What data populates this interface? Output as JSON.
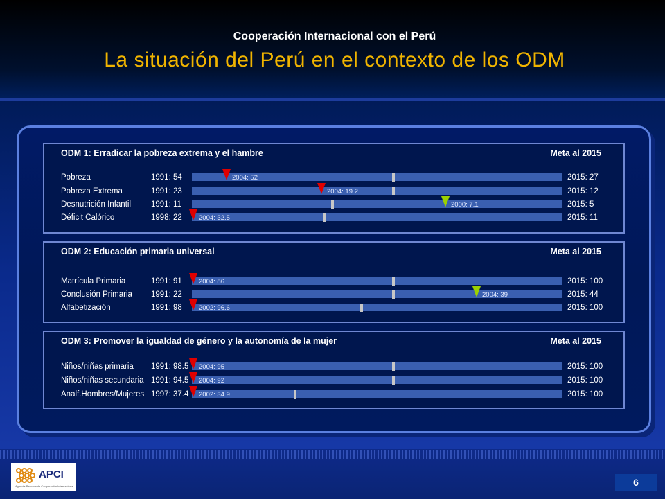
{
  "header": {
    "subtitle": "Cooperación Internacional con el Perú",
    "title": "La situación del Perú en el contexto de los ODM"
  },
  "sections": [
    {
      "title": "ODM 1: Erradicar la pobreza extrema y el hambre",
      "meta": "Meta al 2015",
      "rows": [
        {
          "label": "Pobreza",
          "base": "1991: 54",
          "current": "2004: 52",
          "goal": "2015: 27",
          "marker": "red",
          "progress": 0.09,
          "midpoint": 0.54
        },
        {
          "label": "Pobreza Extrema",
          "base": "1991: 23",
          "current": "2004: 19.2",
          "goal": "2015: 12",
          "marker": "red",
          "progress": 0.345,
          "midpoint": 0.54
        },
        {
          "label": "Desnutrición Infantil",
          "base": "1991: 11",
          "current": "2000: 7.1",
          "goal": "2015: 5",
          "marker": "green",
          "progress": 0.68,
          "midpoint": 0.375
        },
        {
          "label": "Déficit Calórico",
          "base": "1998: 22",
          "current": "2004: 32.5",
          "goal": "2015: 11",
          "marker": "red",
          "progress": 0.0,
          "midpoint": 0.355
        }
      ]
    },
    {
      "title": "ODM 2: Educación primaria universal",
      "meta": "Meta al 2015",
      "rows": [
        {
          "label": "Matrícula Primaria",
          "base": "1991: 91",
          "current": "2004: 86",
          "goal": "2015: 100",
          "marker": "red",
          "progress": 0.0,
          "midpoint": 0.54
        },
        {
          "label": "Conclusión Primaria",
          "base": "1991: 22",
          "current": "2004: 39",
          "goal": "2015: 44",
          "marker": "green",
          "progress": 0.765,
          "midpoint": 0.54
        },
        {
          "label": "Alfabetización",
          "base": "1991: 98",
          "current": "2002: 96.6",
          "goal": "2015: 100",
          "marker": "red",
          "progress": 0.0,
          "midpoint": 0.455
        }
      ]
    },
    {
      "title": "ODM 3: Promover la igualdad de género y la autonomía de la  mujer",
      "meta": "Meta al 2015",
      "rows": [
        {
          "label": "Niños/niñas primaria",
          "base": "1991: 98.5",
          "current": "2004: 95",
          "goal": "2015: 100",
          "marker": "red",
          "progress": 0.0,
          "midpoint": 0.54
        },
        {
          "label": "Niños/niñas secundaria",
          "base": "1991: 94.5",
          "current": "2004: 92",
          "goal": "2015: 100",
          "marker": "red",
          "progress": 0.0,
          "midpoint": 0.54
        },
        {
          "label": "Analf.Hombres/Mujeres",
          "base": "1997: 37.4",
          "current": "2002: 34.9",
          "goal": "2015: 100",
          "marker": "red",
          "progress": 0.0,
          "midpoint": 0.275
        }
      ]
    }
  ],
  "footer": {
    "logo_text": "APCI",
    "logo_subtext": "Agencia Peruana de Cooperación Internacional",
    "page_number": "6"
  },
  "colors": {
    "title": "#f0b400",
    "marker_red": "#e00000",
    "marker_green": "#9bd100",
    "bar": "#3a5fb0"
  }
}
